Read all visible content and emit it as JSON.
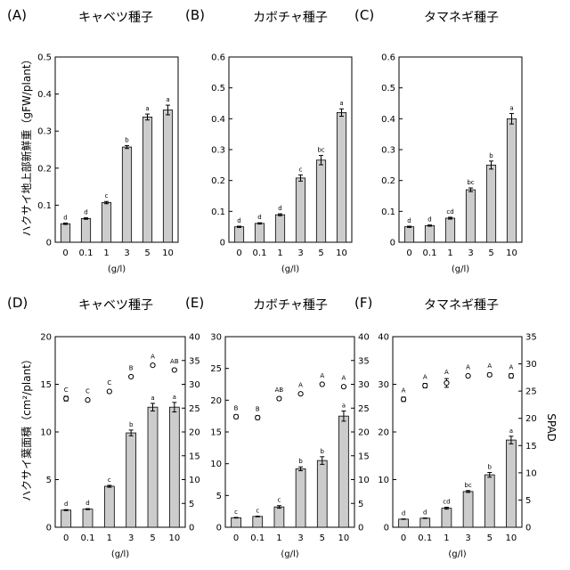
{
  "figure": {
    "ylabel_top": "ハクサイ地上部新鮮重（gFW/plant）",
    "ylabel_bottom": "ハクサイ葉面積（cm²/plant）",
    "ylabel_right": "SPAD"
  },
  "chart_data": [
    {
      "type": "bar",
      "label": "(A)",
      "title": "キャベツ種子",
      "categories": [
        "0",
        "0.1",
        "1",
        "3",
        "5",
        "10"
      ],
      "values": [
        0.05,
        0.064,
        0.107,
        0.257,
        0.338,
        0.357
      ],
      "errors": [
        0.002,
        0.002,
        0.003,
        0.004,
        0.008,
        0.013
      ],
      "letters": [
        "d",
        "d",
        "c",
        "b",
        "a",
        "a"
      ],
      "xlabel": "(g/l)",
      "ylim": [
        0,
        0.5
      ],
      "yticks": [
        "0",
        "0.1",
        "0.2",
        "0.3",
        "0.4",
        "0.5"
      ]
    },
    {
      "type": "bar",
      "label": "(B)",
      "title": "カボチャ種子",
      "categories": [
        "0",
        "0.1",
        "1",
        "3",
        "5",
        "10"
      ],
      "values": [
        0.05,
        0.061,
        0.089,
        0.208,
        0.266,
        0.42
      ],
      "errors": [
        0.002,
        0.002,
        0.003,
        0.01,
        0.015,
        0.012
      ],
      "letters": [
        "d",
        "d",
        "d",
        "c",
        "bc",
        "a"
      ],
      "xlabel": "(g/l)",
      "ylim": [
        0,
        0.6
      ],
      "yticks": [
        "0",
        "0.1",
        "0.2",
        "0.3",
        "0.4",
        "0.5",
        "0.6"
      ]
    },
    {
      "type": "bar",
      "label": "(C)",
      "title": "タマネギ種子",
      "categories": [
        "0",
        "0.1",
        "1",
        "3",
        "5",
        "10"
      ],
      "values": [
        0.05,
        0.054,
        0.078,
        0.17,
        0.25,
        0.4
      ],
      "errors": [
        0.002,
        0.002,
        0.003,
        0.006,
        0.013,
        0.017
      ],
      "letters": [
        "d",
        "d",
        "cd",
        "bc",
        "b",
        "a"
      ],
      "xlabel": "(g/l)",
      "ylim": [
        0,
        0.6
      ],
      "yticks": [
        "0",
        "0.1",
        "0.2",
        "0.3",
        "0.4",
        "0.5",
        "0.6"
      ]
    },
    {
      "type": "bar",
      "label": "(D)",
      "title": "キャベツ種子",
      "categories": [
        "0",
        "0.1",
        "1",
        "3",
        "5",
        "10"
      ],
      "values": [
        1.8,
        1.9,
        4.3,
        9.9,
        12.6,
        12.6
      ],
      "errors": [
        0.05,
        0.05,
        0.1,
        0.3,
        0.4,
        0.5
      ],
      "letters": [
        "d",
        "d",
        "c",
        "b",
        "a",
        "a"
      ],
      "xlabel": "(g/l)",
      "ylim": [
        0,
        20
      ],
      "yticks": [
        "0",
        "5",
        "10",
        "15",
        "20"
      ],
      "secondary": {
        "values": [
          27,
          26.7,
          28.5,
          31.6,
          34,
          33
        ],
        "errors": [
          0.5,
          0.3,
          0.3,
          0.2,
          0.2,
          0.2
        ],
        "letters": [
          "C",
          "C",
          "C",
          "B",
          "A",
          "AB"
        ],
        "ylim": [
          0,
          40
        ],
        "yticks": [
          "0",
          "5",
          "10",
          "15",
          "20",
          "25",
          "30",
          "35",
          "40"
        ]
      }
    },
    {
      "type": "bar",
      "label": "(E)",
      "title": "カボチャ種子",
      "categories": [
        "0",
        "0.1",
        "1",
        "3",
        "5",
        "10"
      ],
      "values": [
        1.5,
        1.7,
        3.2,
        9.2,
        10.5,
        17.5
      ],
      "errors": [
        0.05,
        0.05,
        0.2,
        0.3,
        0.6,
        0.8
      ],
      "letters": [
        "c",
        "c",
        "c",
        "b",
        "b",
        "a"
      ],
      "xlabel": "(g/l)",
      "ylim": [
        0,
        30
      ],
      "yticks": [
        "0",
        "5",
        "10",
        "15",
        "20",
        "25",
        "30"
      ],
      "secondary": {
        "values": [
          23.2,
          23,
          27,
          28,
          30,
          29.5
        ],
        "errors": [
          0.4,
          0.4,
          0.3,
          0.2,
          0.2,
          0.2
        ],
        "letters": [
          "B",
          "B",
          "AB",
          "A",
          "A",
          "A"
        ],
        "ylim": [
          0,
          40
        ],
        "yticks": [
          "0",
          "5",
          "10",
          "15",
          "20",
          "25",
          "30",
          "35",
          "40"
        ]
      }
    },
    {
      "type": "bar",
      "label": "(F)",
      "title": "タマネギ種子",
      "categories": [
        "0",
        "0.1",
        "1",
        "3",
        "5",
        "10"
      ],
      "values": [
        1.7,
        1.9,
        4,
        7.5,
        11,
        18.3
      ],
      "errors": [
        0.05,
        0.05,
        0.2,
        0.2,
        0.5,
        0.8
      ],
      "letters": [
        "d",
        "d",
        "cd",
        "bc",
        "b",
        "a"
      ],
      "xlabel": "(g/l)",
      "ylim": [
        0,
        40
      ],
      "yticks": [
        "0",
        "10",
        "20",
        "30",
        "40"
      ],
      "secondary": {
        "values": [
          23.5,
          26,
          26.5,
          27.8,
          28,
          27.8
        ],
        "errors": [
          0.4,
          0.4,
          0.8,
          0.2,
          0.3,
          0.4
        ],
        "letters": [
          "A",
          "A",
          "A",
          "A",
          "A",
          "A"
        ],
        "ylim": [
          0,
          35
        ],
        "yticks": [
          "0",
          "5",
          "10",
          "15",
          "20",
          "25",
          "30",
          "35"
        ],
        "ylabel": "SPAD"
      }
    }
  ]
}
